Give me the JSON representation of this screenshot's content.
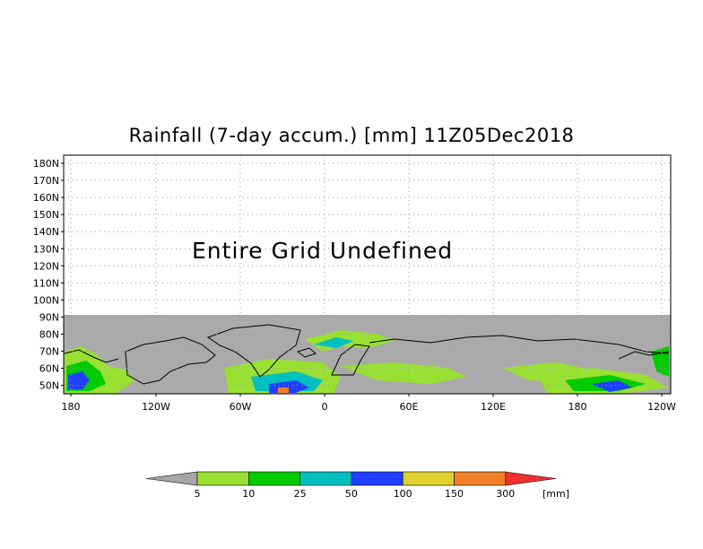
{
  "title": "Rainfall (7-day accum.) [mm] 11Z05Dec2018",
  "undefined_note": "Entire Grid Undefined",
  "lat_labels": [
    "180N",
    "170N",
    "160N",
    "150N",
    "140N",
    "130N",
    "120N",
    "110N",
    "100N",
    "90N",
    "80N",
    "70N",
    "60N",
    "50N"
  ],
  "lon_labels": [
    "180",
    "120W",
    "60W",
    "0",
    "60E",
    "120E",
    "180",
    "120W"
  ],
  "colorbar": {
    "unit": "[mm]",
    "labels": [
      "5",
      "10",
      "25",
      "50",
      "100",
      "150",
      "300"
    ],
    "colors": [
      "#a6a6a6",
      "#99e033",
      "#00cc00",
      "#00c0c0",
      "#2040ff",
      "#e0d030",
      "#f08028",
      "#f03030"
    ]
  },
  "colors": {
    "undefined_fill": "#aaaaaa",
    "coastline": "#000000",
    "grid": "#999999"
  }
}
